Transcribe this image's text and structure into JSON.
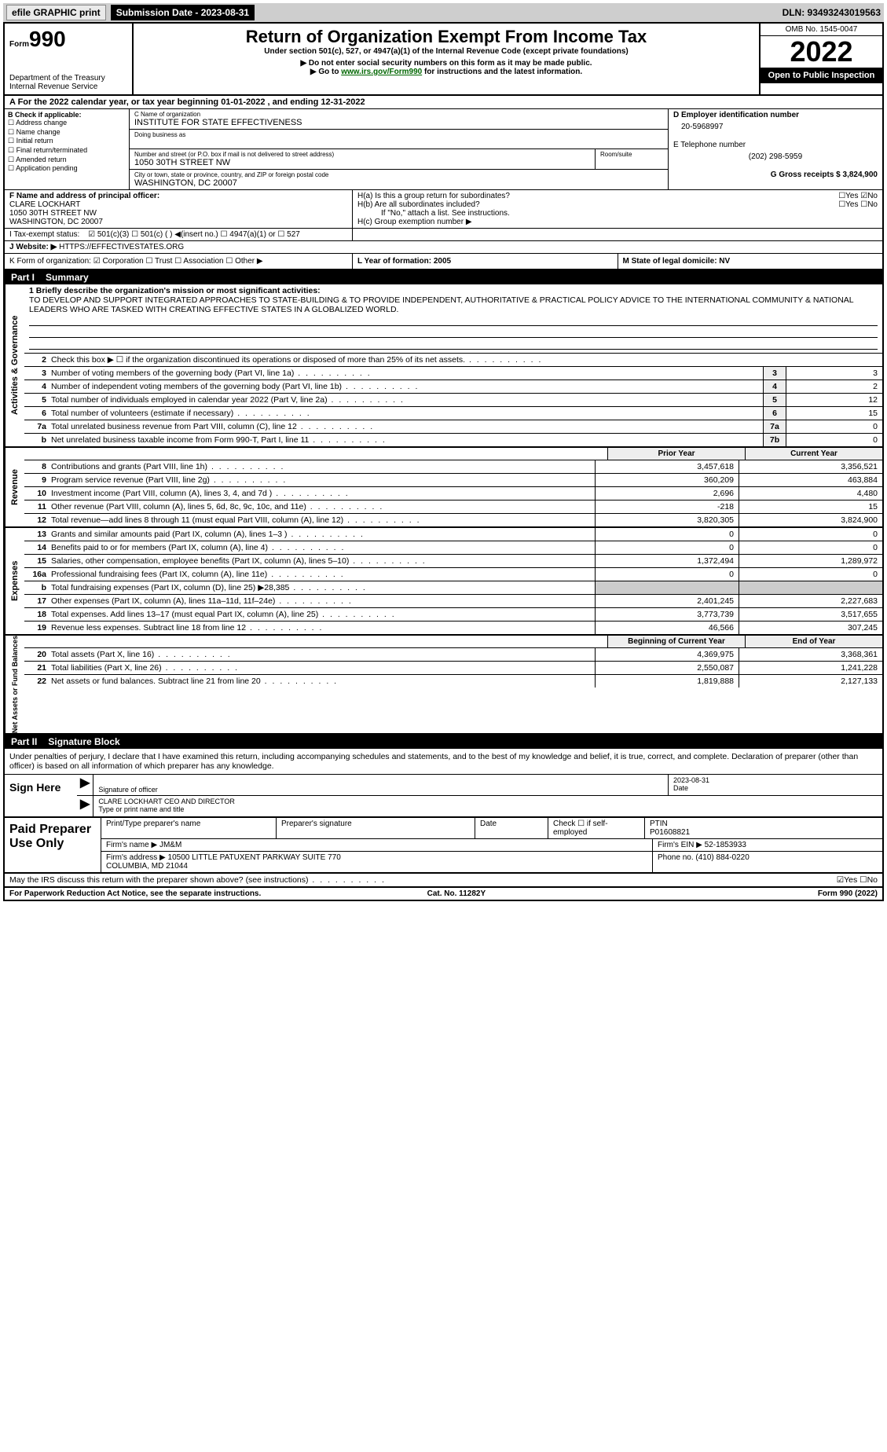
{
  "topbar": {
    "efile": "efile GRAPHIC print",
    "sub_label": "Submission Date - 2023-08-31",
    "dln": "DLN: 93493243019563"
  },
  "header": {
    "form_word": "Form",
    "form_num": "990",
    "dept1": "Department of the Treasury",
    "dept2": "Internal Revenue Service",
    "title": "Return of Organization Exempt From Income Tax",
    "subtitle": "Under section 501(c), 527, or 4947(a)(1) of the Internal Revenue Code (except private foundations)",
    "note1": "▶ Do not enter social security numbers on this form as it may be made public.",
    "note2_pre": "▶ Go to ",
    "note2_link": "www.irs.gov/Form990",
    "note2_post": " for instructions and the latest information.",
    "omb": "OMB No. 1545-0047",
    "year": "2022",
    "open": "Open to Public Inspection"
  },
  "rowA": {
    "text": "A For the 2022 calendar year, or tax year beginning 01-01-2022     , and ending 12-31-2022"
  },
  "colB": {
    "hdr": "B Check if applicable:",
    "opts": [
      "☐ Address change",
      "☐ Name change",
      "☐ Initial return",
      "☐ Final return/terminated",
      "☐ Amended return",
      "☐ Application pending"
    ]
  },
  "colC": {
    "name_lbl": "C Name of organization",
    "name": "INSTITUTE FOR STATE EFFECTIVENESS",
    "dba_lbl": "Doing business as",
    "dba": "",
    "addr_lbl": "Number and street (or P.O. box if mail is not delivered to street address)",
    "room_lbl": "Room/suite",
    "addr": "1050 30TH STREET NW",
    "city_lbl": "City or town, state or province, country, and ZIP or foreign postal code",
    "city": "WASHINGTON, DC  20007"
  },
  "colD": {
    "ein_lbl": "D Employer identification number",
    "ein": "20-5968997",
    "tel_lbl": "E Telephone number",
    "tel": "(202) 298-5959",
    "gross_lbl": "G Gross receipts $ 3,824,900"
  },
  "colF": {
    "lbl": "F Name and address of principal officer:",
    "name": "CLARE LOCKHART",
    "addr1": "1050 30TH STREET NW",
    "addr2": "WASHINGTON, DC  20007"
  },
  "colH": {
    "ha": "H(a)  Is this a group return for subordinates?",
    "ha_ans": "☐Yes ☑No",
    "hb": "H(b)  Are all subordinates included?",
    "hb_ans": "☐Yes ☐No",
    "hb_note": "If \"No,\" attach a list. See instructions.",
    "hc": "H(c)  Group exemption number ▶"
  },
  "rowI": {
    "lbl": "I   Tax-exempt status:",
    "opts": "☑ 501(c)(3)    ☐ 501(c) (  ) ◀(insert no.)    ☐ 4947(a)(1) or    ☐ 527"
  },
  "rowJ": {
    "lbl": "J   Website: ▶",
    "val": "HTTPS://EFFECTIVESTATES.ORG"
  },
  "rowK": {
    "lbl": "K Form of organization:  ☑ Corporation  ☐ Trust  ☐ Association  ☐ Other ▶",
    "l": "L Year of formation: 2005",
    "m": "M State of legal domicile: NV"
  },
  "part1": {
    "tag": "Part I",
    "title": "Summary"
  },
  "mission": {
    "lbl": "1  Briefly describe the organization's mission or most significant activities:",
    "text": "TO DEVELOP AND SUPPORT INTEGRATED APPROACHES TO STATE-BUILDING & TO PROVIDE INDEPENDENT, AUTHORITATIVE & PRACTICAL POLICY ADVICE TO THE INTERNATIONAL COMMUNITY & NATIONAL LEADERS WHO ARE TASKED WITH CREATING EFFECTIVE STATES IN A GLOBALIZED WORLD."
  },
  "gov_lines": [
    {
      "n": "2",
      "d": "Check this box ▶ ☐ if the organization discontinued its operations or disposed of more than 25% of its net assets.",
      "b": "",
      "v": ""
    },
    {
      "n": "3",
      "d": "Number of voting members of the governing body (Part VI, line 1a)",
      "b": "3",
      "v": "3"
    },
    {
      "n": "4",
      "d": "Number of independent voting members of the governing body (Part VI, line 1b)",
      "b": "4",
      "v": "2"
    },
    {
      "n": "5",
      "d": "Total number of individuals employed in calendar year 2022 (Part V, line 2a)",
      "b": "5",
      "v": "12"
    },
    {
      "n": "6",
      "d": "Total number of volunteers (estimate if necessary)",
      "b": "6",
      "v": "15"
    },
    {
      "n": "7a",
      "d": "Total unrelated business revenue from Part VIII, column (C), line 12",
      "b": "7a",
      "v": "0"
    },
    {
      "n": "b",
      "d": "Net unrelated business taxable income from Form 990-T, Part I, line 11",
      "b": "7b",
      "v": "0"
    }
  ],
  "yr_hdr": {
    "prior": "Prior Year",
    "curr": "Current Year"
  },
  "rev_lines": [
    {
      "n": "8",
      "d": "Contributions and grants (Part VIII, line 1h)",
      "p": "3,457,618",
      "c": "3,356,521"
    },
    {
      "n": "9",
      "d": "Program service revenue (Part VIII, line 2g)",
      "p": "360,209",
      "c": "463,884"
    },
    {
      "n": "10",
      "d": "Investment income (Part VIII, column (A), lines 3, 4, and 7d )",
      "p": "2,696",
      "c": "4,480"
    },
    {
      "n": "11",
      "d": "Other revenue (Part VIII, column (A), lines 5, 6d, 8c, 9c, 10c, and 11e)",
      "p": "-218",
      "c": "15"
    },
    {
      "n": "12",
      "d": "Total revenue—add lines 8 through 11 (must equal Part VIII, column (A), line 12)",
      "p": "3,820,305",
      "c": "3,824,900"
    }
  ],
  "exp_lines": [
    {
      "n": "13",
      "d": "Grants and similar amounts paid (Part IX, column (A), lines 1–3 )",
      "p": "0",
      "c": "0"
    },
    {
      "n": "14",
      "d": "Benefits paid to or for members (Part IX, column (A), line 4)",
      "p": "0",
      "c": "0"
    },
    {
      "n": "15",
      "d": "Salaries, other compensation, employee benefits (Part IX, column (A), lines 5–10)",
      "p": "1,372,494",
      "c": "1,289,972"
    },
    {
      "n": "16a",
      "d": "Professional fundraising fees (Part IX, column (A), line 11e)",
      "p": "0",
      "c": "0"
    },
    {
      "n": "b",
      "d": "Total fundraising expenses (Part IX, column (D), line 25) ▶28,385",
      "p": "",
      "c": ""
    },
    {
      "n": "17",
      "d": "Other expenses (Part IX, column (A), lines 11a–11d, 11f–24e)",
      "p": "2,401,245",
      "c": "2,227,683"
    },
    {
      "n": "18",
      "d": "Total expenses. Add lines 13–17 (must equal Part IX, column (A), line 25)",
      "p": "3,773,739",
      "c": "3,517,655"
    },
    {
      "n": "19",
      "d": "Revenue less expenses. Subtract line 18 from line 12",
      "p": "46,566",
      "c": "307,245"
    }
  ],
  "na_hdr": {
    "beg": "Beginning of Current Year",
    "end": "End of Year"
  },
  "na_lines": [
    {
      "n": "20",
      "d": "Total assets (Part X, line 16)",
      "p": "4,369,975",
      "c": "3,368,361"
    },
    {
      "n": "21",
      "d": "Total liabilities (Part X, line 26)",
      "p": "2,550,087",
      "c": "1,241,228"
    },
    {
      "n": "22",
      "d": "Net assets or fund balances. Subtract line 21 from line 20",
      "p": "1,819,888",
      "c": "2,127,133"
    }
  ],
  "side_labels": {
    "gov": "Activities & Governance",
    "rev": "Revenue",
    "exp": "Expenses",
    "na": "Net Assets or Fund Balances"
  },
  "part2": {
    "tag": "Part II",
    "title": "Signature Block"
  },
  "sig": {
    "intro": "Under penalties of perjury, I declare that I have examined this return, including accompanying schedules and statements, and to the best of my knowledge and belief, it is true, correct, and complete. Declaration of preparer (other than officer) is based on all information of which preparer has any knowledge.",
    "here": "Sign Here",
    "sig_lbl": "Signature of officer",
    "date_lbl": "Date",
    "date": "2023-08-31",
    "name": "CLARE LOCKHART CEO AND DIRECTOR",
    "name_lbl": "Type or print name and title"
  },
  "prep": {
    "title": "Paid Preparer Use Only",
    "h1": "Print/Type preparer's name",
    "h2": "Preparer's signature",
    "h3": "Date",
    "h4": "Check ☐ if self-employed",
    "h5_lbl": "PTIN",
    "h5": "P01608821",
    "firm_lbl": "Firm's name    ▶",
    "firm": "JM&M",
    "ein_lbl": "Firm's EIN ▶",
    "ein": "52-1853933",
    "addr_lbl": "Firm's address ▶",
    "addr": "10500 LITTLE PATUXENT PARKWAY SUITE 770\nCOLUMBIA, MD  21044",
    "phone_lbl": "Phone no.",
    "phone": "(410) 884-0220"
  },
  "discuss": {
    "q": "May the IRS discuss this return with the preparer shown above? (see instructions)",
    "a": "☑Yes  ☐No"
  },
  "footer": {
    "left": "For Paperwork Reduction Act Notice, see the separate instructions.",
    "mid": "Cat. No. 11282Y",
    "right": "Form 990 (2022)"
  }
}
